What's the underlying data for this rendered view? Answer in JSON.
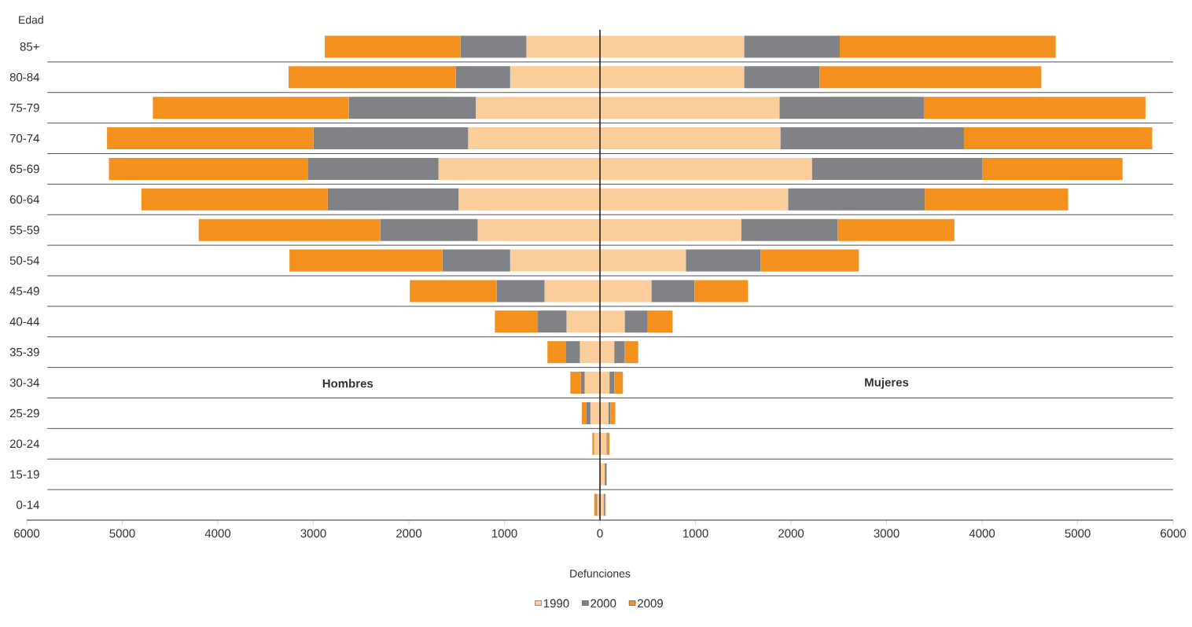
{
  "chart_data": {
    "type": "bar",
    "orientation": "horizontal",
    "stacked": true,
    "ylabel": "Edad",
    "xlabel": "Defunciones",
    "categories": [
      "85+",
      "80-84",
      "75-79",
      "70-74",
      "65-69",
      "60-64",
      "55-59",
      "50-54",
      "45-49",
      "40-44",
      "35-39",
      "30-34",
      "25-29",
      "20-24",
      "15-19",
      "0-14"
    ],
    "series": [
      {
        "color": "#fbcd9b",
        "values": [
          -770,
          -940,
          -1300,
          -1380,
          -1690,
          -1480,
          -1280,
          -940,
          -580,
          -350,
          -210,
          -160,
          -100,
          -60,
          null,
          -30
        ]
      },
      {
        "color": "#818285",
        "values": [
          -690,
          -570,
          -1330,
          -1620,
          -1370,
          -1370,
          -1020,
          -710,
          -500,
          -300,
          -150,
          -40,
          -40,
          0,
          0,
          -10
        ]
      },
      {
        "color": "#f3901e",
        "values": [
          -1420,
          -1750,
          -2050,
          -2160,
          -2080,
          -1950,
          -1900,
          -1600,
          -910,
          -450,
          -190,
          -110,
          -50,
          -20,
          0,
          -20
        ]
      },
      {
        "name": "1990",
        "color": "#fbcd9b",
        "values": [
          1510,
          1510,
          1880,
          1890,
          2220,
          1970,
          1480,
          900,
          540,
          260,
          150,
          100,
          90,
          70,
          50,
          40
        ]
      },
      {
        "name": "2000",
        "color": "#818285",
        "values": [
          1000,
          790,
          1510,
          1920,
          1780,
          1430,
          1010,
          780,
          450,
          240,
          110,
          50,
          20,
          10,
          20,
          10
        ]
      },
      {
        "name": "2009",
        "color": "#f3901e",
        "values": [
          2260,
          2320,
          2320,
          1970,
          1470,
          1500,
          1220,
          1030,
          560,
          260,
          140,
          90,
          50,
          20,
          0,
          10
        ]
      }
    ],
    "xlim": [
      -6000,
      6000
    ],
    "xticks": [
      {
        "value": -6000,
        "label": "6000"
      },
      {
        "value": -5000,
        "label": "5000"
      },
      {
        "value": -4000,
        "label": "4000"
      },
      {
        "value": -3000,
        "label": "3000"
      },
      {
        "value": -2000,
        "label": "2000"
      },
      {
        "value": -1000,
        "label": "1000"
      },
      0,
      1000,
      2000,
      3000,
      4000,
      5000,
      6000
    ],
    "ref_lines": [
      {
        "axis": "x",
        "value": 0,
        "color": "#231f20"
      }
    ],
    "annotations": [
      "Hombres",
      "Mujeres"
    ],
    "grid": "y",
    "legend": "bottom"
  }
}
